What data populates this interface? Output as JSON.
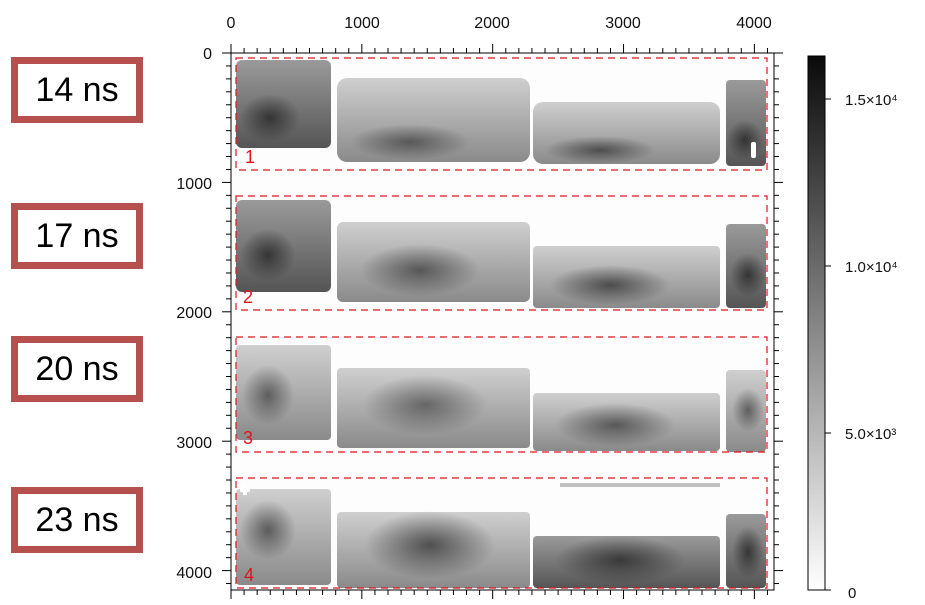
{
  "x_axis": {
    "ticks": [
      "0",
      "1000",
      "2000",
      "3000",
      "4000"
    ],
    "range": [
      0,
      4150
    ]
  },
  "y_axis": {
    "ticks": [
      "0",
      "1000",
      "2000",
      "3000",
      "4000"
    ],
    "range": [
      0,
      4150
    ]
  },
  "colorbar": {
    "ticks": [
      "1.5×10⁴",
      "1.0×10⁴",
      "5.0×10³",
      "0"
    ],
    "range": [
      0,
      16000
    ],
    "colormap": "grayscale-reversed"
  },
  "time_labels": [
    "14 ns",
    "17 ns",
    "20 ns",
    "23 ns"
  ],
  "frame_numbers": [
    "1",
    "2",
    "3",
    "4"
  ],
  "colors": {
    "box_border": "#b5504e",
    "dashed_frame": "#e0141c",
    "axis": "#000000"
  }
}
